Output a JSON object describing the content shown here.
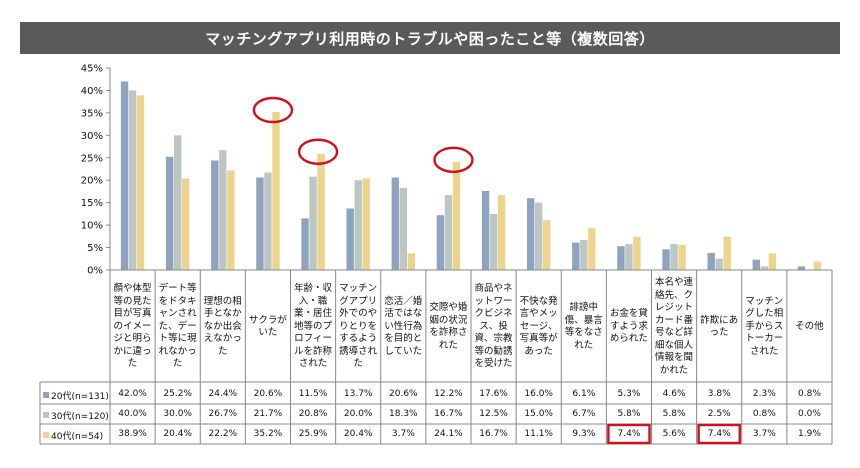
{
  "chart_data": {
    "type": "bar",
    "title": "マッチングアプリ利用時のトラブルや困ったこと等（複数回答）",
    "categories": [
      "顔や体型等の見た目が写真のイメージと明らかに違った",
      "デート等をドタキャンされた、デート等に現れなかった",
      "理想の相手となかなか出会えなかった",
      "サクラがいた",
      "年齢・収入・職業・居住地等のプロフィールを詐称された",
      "マッチングアプリ外でのやりとりをするよう誘導された",
      "恋活／婚活ではない性行為を目的としていた",
      "交際や婚姻の状況を詐称された",
      "商品やネットワークビジネス、投資、宗教等の勧誘を受けた",
      "不快な発言やメッセージ、写真等があった",
      "誹謗中傷、暴言等をなされた",
      "お金を貸すよう求められた",
      "本名や連絡先、クレジットカード番号など詳細な個人情報を聞かれた",
      "詐欺にあった",
      "マッチングした相手からストーカーされた",
      "その他"
    ],
    "series": [
      {
        "name": "20代(n=131)",
        "color": "#8da3bf",
        "values": [
          42.0,
          25.2,
          24.4,
          20.6,
          11.5,
          13.7,
          20.6,
          12.2,
          17.6,
          16.0,
          6.1,
          5.3,
          4.6,
          3.8,
          2.3,
          0.8
        ],
        "labels": [
          "42.0%",
          "25.2%",
          "24.4%",
          "20.6%",
          "11.5%",
          "13.7%",
          "20.6%",
          "12.2%",
          "17.6%",
          "16.0%",
          "6.1%",
          "5.3%",
          "4.6%",
          "3.8%",
          "2.3%",
          "0.8%"
        ]
      },
      {
        "name": "30代(n=120)",
        "color": "#bcc7c4",
        "values": [
          40.0,
          30.0,
          26.7,
          21.7,
          20.8,
          20.0,
          18.3,
          16.7,
          12.5,
          15.0,
          6.7,
          5.8,
          5.8,
          2.5,
          0.8,
          0.0
        ],
        "labels": [
          "40.0%",
          "30.0%",
          "26.7%",
          "21.7%",
          "20.8%",
          "20.0%",
          "18.3%",
          "16.7%",
          "12.5%",
          "15.0%",
          "6.7%",
          "5.8%",
          "5.8%",
          "2.5%",
          "0.8%",
          "0.0%"
        ]
      },
      {
        "name": "40代(n=54)",
        "color": "#ecd48f",
        "values": [
          38.9,
          20.4,
          22.2,
          35.2,
          25.9,
          20.4,
          3.7,
          24.1,
          16.7,
          11.1,
          9.3,
          7.4,
          5.6,
          7.4,
          3.7,
          1.9
        ],
        "labels": [
          "38.9%",
          "20.4%",
          "22.2%",
          "35.2%",
          "25.9%",
          "20.4%",
          "3.7%",
          "24.1%",
          "16.7%",
          "11.1%",
          "9.3%",
          "7.4%",
          "5.6%",
          "7.4%",
          "3.7%",
          "1.9%"
        ]
      }
    ],
    "yticks": [
      "0%",
      "5%",
      "10%",
      "15%",
      "20%",
      "25%",
      "30%",
      "35%",
      "40%",
      "45%"
    ],
    "ylim": [
      0,
      45
    ],
    "grid": false,
    "legend": "table-below",
    "highlight_circles": [
      {
        "category_index": 3,
        "series_index": 2
      },
      {
        "category_index": 4,
        "series_index": 2
      },
      {
        "category_index": 7,
        "series_index": 2
      }
    ],
    "highlight_boxes": [
      {
        "category_index": 11,
        "series_index": 2
      },
      {
        "category_index": 13,
        "series_index": 2
      }
    ],
    "highlight_color": "#d0101a",
    "axis_color": "#888888"
  }
}
